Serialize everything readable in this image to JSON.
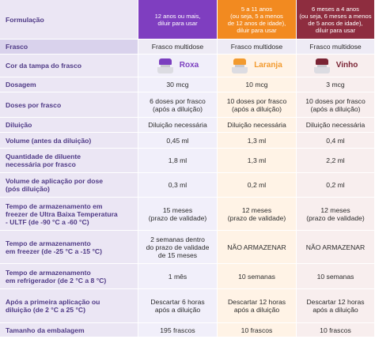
{
  "header": {
    "label": "Formulação",
    "col1": [
      "12 anos ou mais,",
      "diluir para usar"
    ],
    "col2": [
      "5 a 11 anos",
      "(ou seja, 5 a menos",
      "de 12 anos de idade),",
      "diluir para usar"
    ],
    "col3": [
      "6 meses a 4 anos",
      "(ou seja, 6 meses a menos",
      "de 5 anos de idade),",
      "diluir para usar"
    ]
  },
  "colors": {
    "purple": "#7f3ec0",
    "orange": "#f28a20",
    "maroon": "#8e2d3f"
  },
  "caps": [
    {
      "name": "Roxa",
      "color": "#7b3fbf",
      "icon": "vial-purple-cap-icon"
    },
    {
      "name": "Laranja",
      "color": "#f29a2e",
      "icon": "vial-orange-cap-icon"
    },
    {
      "name": "Vinho",
      "color": "#7a2434",
      "icon": "vial-maroon-cap-icon"
    }
  ],
  "rows": [
    {
      "label": [
        "Frasco"
      ],
      "values": [
        [
          "Frasco multidose"
        ],
        [
          "Frasco multidose"
        ],
        [
          "Frasco multidose"
        ]
      ]
    },
    {
      "label": [
        "Cor da tampa do frasco"
      ],
      "values": [
        [],
        [],
        []
      ]
    },
    {
      "label": [
        "Dosagem"
      ],
      "values": [
        [
          "30 mcg"
        ],
        [
          "10 mcg"
        ],
        [
          "3 mcg"
        ]
      ]
    },
    {
      "label": [
        "Doses por frasco"
      ],
      "values": [
        [
          "6 doses por frasco",
          "(após a diluição)"
        ],
        [
          "10 doses por frasco",
          "(após a diluição)"
        ],
        [
          "10 doses por frasco",
          "(após a diluição)"
        ]
      ]
    },
    {
      "label": [
        "Diluição"
      ],
      "values": [
        [
          "Diluição necessária"
        ],
        [
          "Diluição necessária"
        ],
        [
          "Diluição necessária"
        ]
      ]
    },
    {
      "label": [
        "Volume (antes da diluição)"
      ],
      "values": [
        [
          "0,45 ml"
        ],
        [
          "1,3 ml"
        ],
        [
          "0,4 ml"
        ]
      ]
    },
    {
      "label": [
        "Quantidade de diluente",
        "necessária por frasco"
      ],
      "values": [
        [
          "1,8 ml"
        ],
        [
          "1,3 ml"
        ],
        [
          "2,2 ml"
        ]
      ]
    },
    {
      "label": [
        "Volume de aplicação por dose",
        "(pós diluição)"
      ],
      "values": [
        [
          "0,3 ml"
        ],
        [
          "0,2 ml"
        ],
        [
          "0,2 ml"
        ]
      ]
    },
    {
      "label": [
        "Tempo de armazenamento em",
        "freezer de Ultra Baixa Temperatura",
        "- ULTF (de -90 °C a -60 °C)"
      ],
      "values": [
        [
          "15 meses",
          "(prazo de validade)"
        ],
        [
          "12 meses",
          "(prazo de validade)"
        ],
        [
          "12 meses",
          "(prazo de validade)"
        ]
      ]
    },
    {
      "label": [
        "Tempo de armazenamento",
        "em freezer (de -25 °C a -15 °C)"
      ],
      "values": [
        [
          "2 semanas dentro",
          "do prazo de validade",
          "de 15 meses"
        ],
        [
          "NÃO ARMAZENAR"
        ],
        [
          "NÃO ARMAZENAR"
        ]
      ]
    },
    {
      "label": [
        "Tempo de armazenamento",
        "em refrigerador (de 2 °C a 8 °C)"
      ],
      "values": [
        [
          "1 mês"
        ],
        [
          "10 semanas"
        ],
        [
          "10 semanas"
        ]
      ]
    },
    {
      "label": [
        "Após a primeira aplicação ou",
        "diluição (de 2 °C a 25 °C)"
      ],
      "values": [
        [
          "Descartar 6 horas",
          "após a diluição"
        ],
        [
          "Descartar 12 horas",
          "após a diluição"
        ],
        [
          "Descartar 12 horas",
          "após a diluição"
        ]
      ]
    },
    {
      "label": [
        "Tamanho da embalagem"
      ],
      "values": [
        [
          "195 frascos"
        ],
        [
          "10 frascos"
        ],
        [
          "10 frascos"
        ]
      ]
    }
  ]
}
